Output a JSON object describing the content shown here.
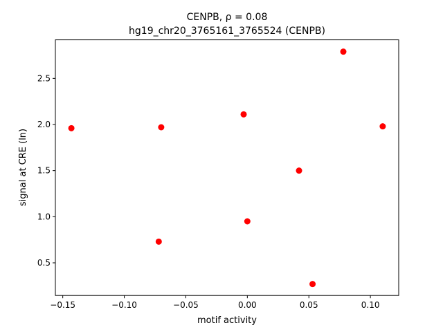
{
  "chart_data": {
    "type": "scatter",
    "title": "CENPB, ρ = 0.08",
    "subtitle": "hg19_chr20_3765161_3765524 (CENPB)",
    "x_label": "motif activity",
    "y_label": "signal at CRE (ln)",
    "color": "#ff0000",
    "grid": false,
    "x": [
      -0.143,
      -0.07,
      -0.072,
      -0.003,
      0.0,
      0.042,
      0.053,
      0.078,
      0.11
    ],
    "values": [
      1.96,
      1.97,
      0.73,
      2.11,
      0.95,
      1.5,
      0.27,
      2.79,
      1.98
    ],
    "xlim": [
      -0.156,
      0.123
    ],
    "ylim": [
      0.146,
      2.918
    ],
    "xticks": [
      {
        "value": -0.15,
        "label": "−0.15"
      },
      {
        "value": -0.1,
        "label": "−0.10"
      },
      {
        "value": -0.05,
        "label": "−0.05"
      },
      {
        "value": 0,
        "label": "0.00"
      },
      0.05,
      {
        "value": 0.1,
        "label": "0.10"
      }
    ],
    "yticks": [
      0.5,
      {
        "value": 1,
        "label": "1.0"
      },
      1.5,
      {
        "value": 2,
        "label": "2.0"
      },
      2.5
    ]
  }
}
